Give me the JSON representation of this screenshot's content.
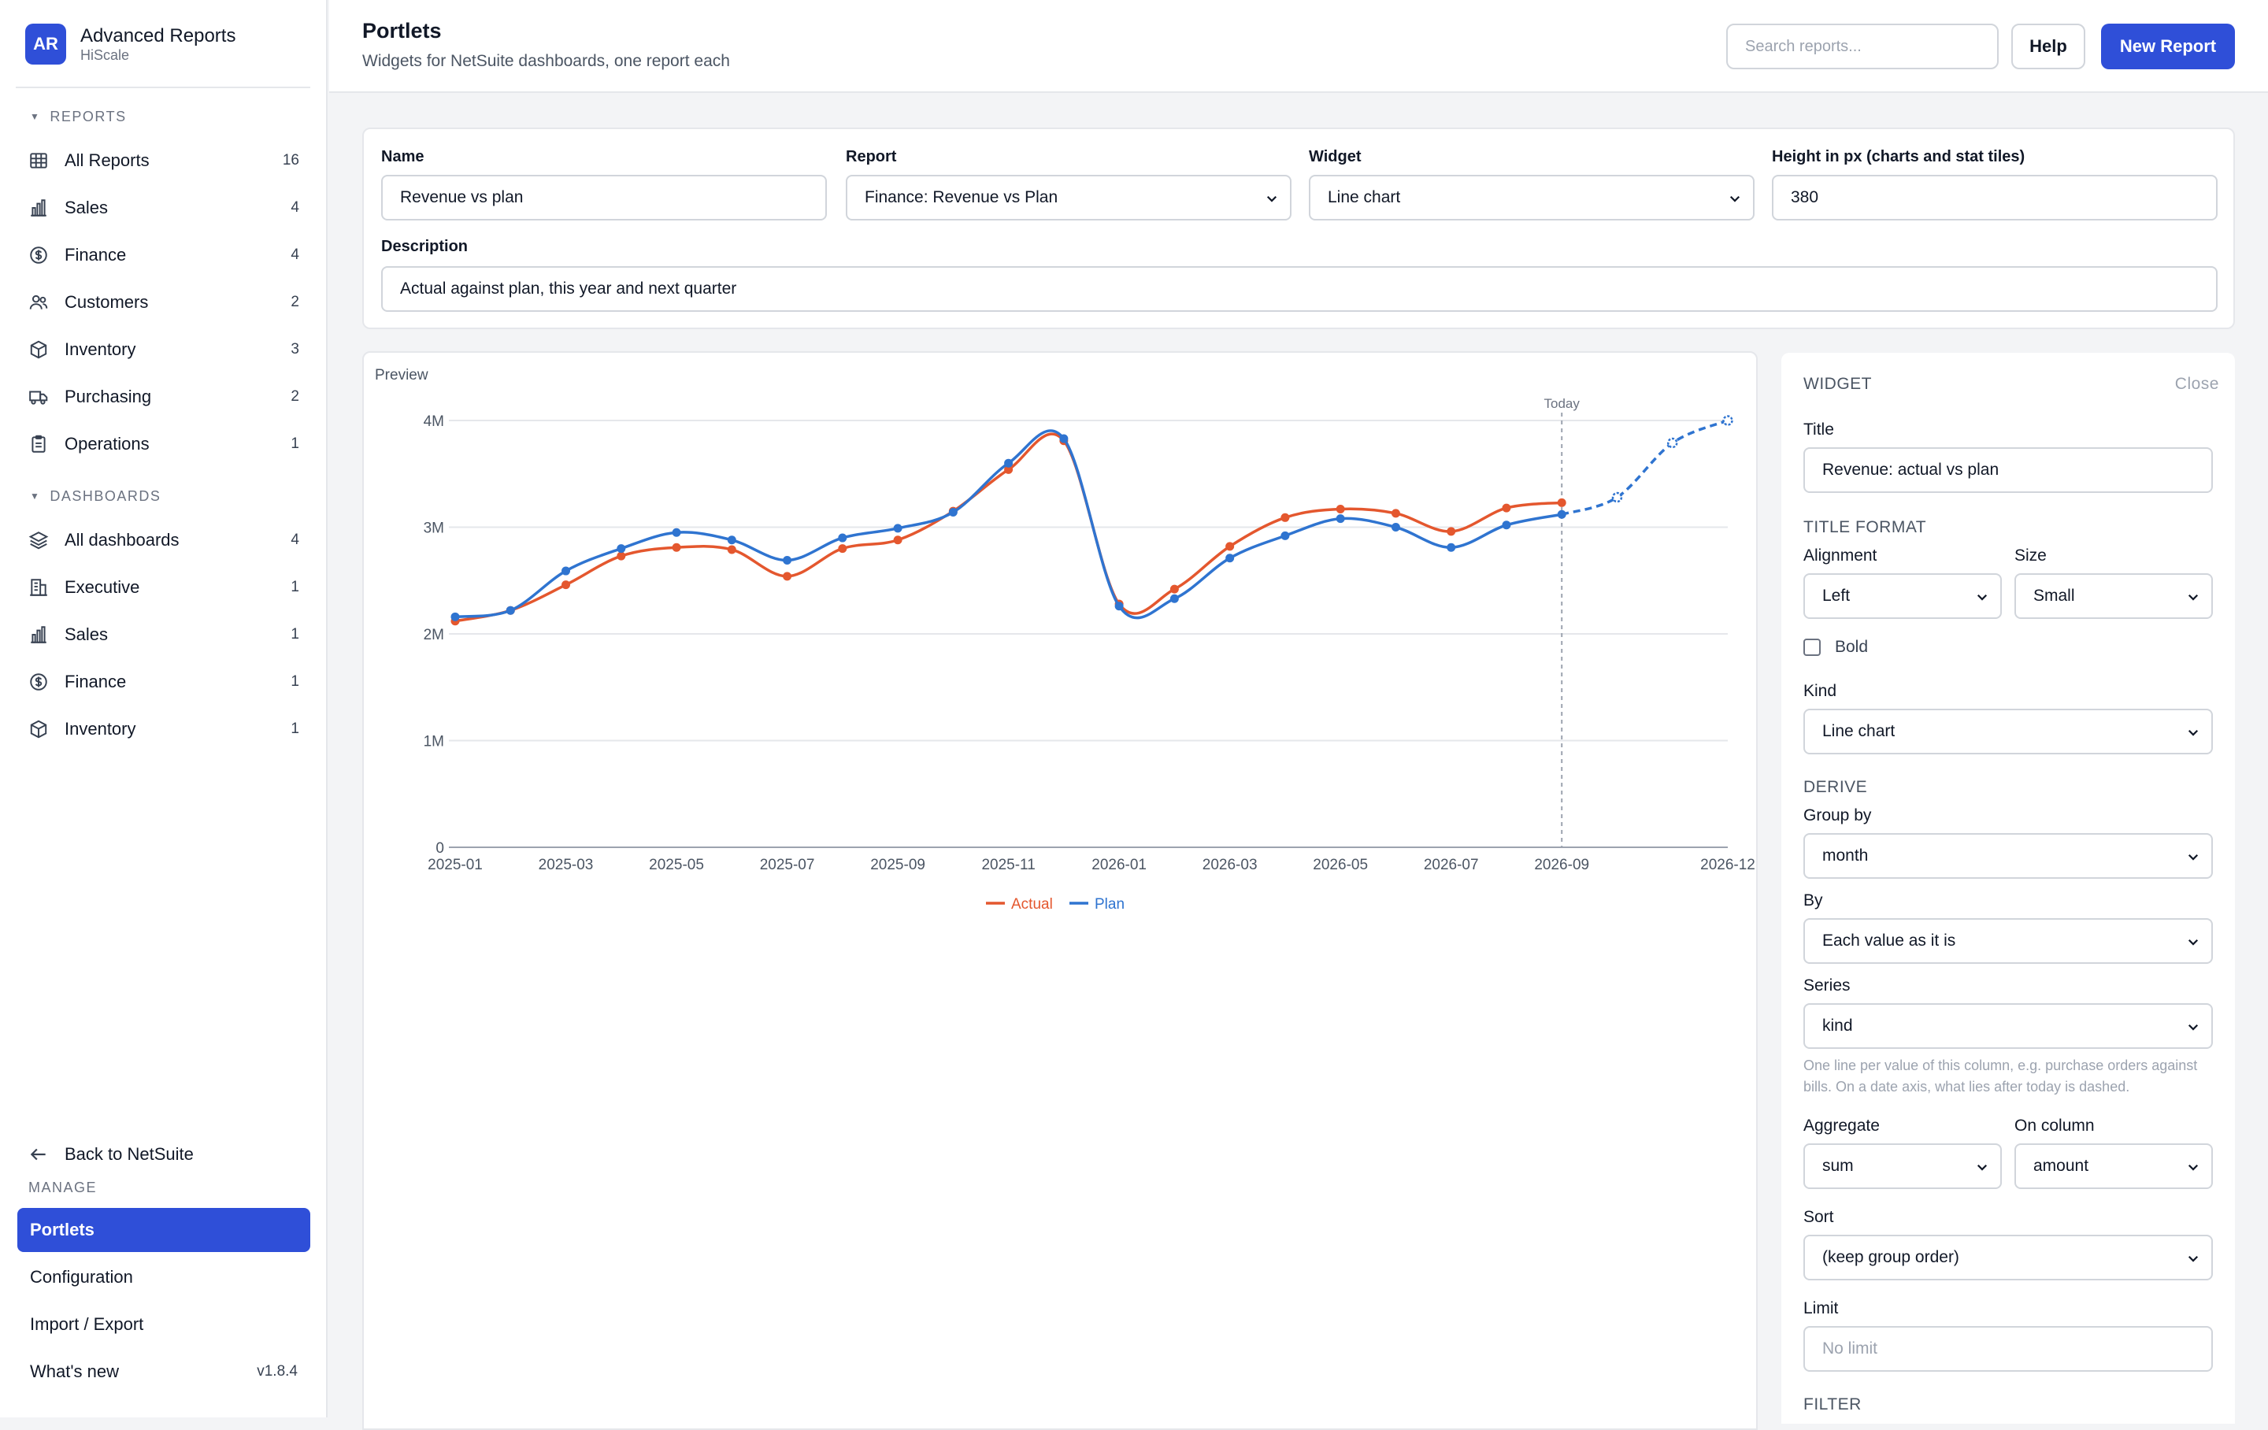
{
  "sidebar": {
    "logo": "AR",
    "app_name": "Advanced Reports",
    "org": "HiScale",
    "reports_section": "REPORTS",
    "reports": [
      {
        "label": "All Reports",
        "count": "16",
        "icon": "grid-icon"
      },
      {
        "label": "Sales",
        "count": "4",
        "icon": "bar-chart-icon"
      },
      {
        "label": "Finance",
        "count": "4",
        "icon": "dollar-icon"
      },
      {
        "label": "Customers",
        "count": "2",
        "icon": "users-icon"
      },
      {
        "label": "Inventory",
        "count": "3",
        "icon": "box-icon"
      },
      {
        "label": "Purchasing",
        "count": "2",
        "icon": "truck-icon"
      },
      {
        "label": "Operations",
        "count": "1",
        "icon": "clipboard-icon"
      }
    ],
    "dashboards_section": "DASHBOARDS",
    "dashboards": [
      {
        "label": "All dashboards",
        "count": "4",
        "icon": "layers-icon"
      },
      {
        "label": "Executive",
        "count": "1",
        "icon": "building-icon"
      },
      {
        "label": "Sales",
        "count": "1",
        "icon": "bar-chart-icon"
      },
      {
        "label": "Finance",
        "count": "1",
        "icon": "dollar-icon"
      },
      {
        "label": "Inventory",
        "count": "1",
        "icon": "box-icon"
      }
    ],
    "back": "Back to NetSuite",
    "manage_section": "MANAGE",
    "manage": [
      {
        "label": "Portlets",
        "active": true
      },
      {
        "label": "Configuration"
      },
      {
        "label": "Import / Export"
      },
      {
        "label": "What's new",
        "version": "v1.8.4"
      }
    ]
  },
  "header": {
    "title": "Portlets",
    "subtitle": "Widgets for NetSuite dashboards, one report each",
    "search_placeholder": "Search reports...",
    "help": "Help",
    "new_report": "New Report"
  },
  "form": {
    "name_label": "Name",
    "name_value": "Revenue vs plan",
    "report_label": "Report",
    "report_value": "Finance: Revenue vs Plan",
    "widget_label": "Widget",
    "widget_value": "Line chart",
    "height_label": "Height in px (charts and stat tiles)",
    "height_value": "380",
    "desc_label": "Description",
    "desc_value": "Actual against plan, this year and next quarter"
  },
  "preview": {
    "label": "Preview"
  },
  "chart_data": {
    "type": "line",
    "x": [
      "2025-01",
      "2025-02",
      "2025-03",
      "2025-04",
      "2025-05",
      "2025-06",
      "2025-07",
      "2025-08",
      "2025-09",
      "2025-10",
      "2025-11",
      "2025-12",
      "2026-01",
      "2026-02",
      "2026-03",
      "2026-04",
      "2026-05",
      "2026-06",
      "2026-07",
      "2026-08",
      "2026-09",
      "2026-10",
      "2026-11",
      "2026-12"
    ],
    "x_ticks": [
      "2025-01",
      "2025-03",
      "2025-05",
      "2025-07",
      "2025-09",
      "2025-11",
      "2026-01",
      "2026-03",
      "2026-05",
      "2026-07",
      "2026-09",
      "2026-12"
    ],
    "y_ticks": [
      "0",
      "1M",
      "2M",
      "3M",
      "4M"
    ],
    "ylim": [
      0,
      4000000
    ],
    "today": "2026-09",
    "today_label": "Today",
    "series": [
      {
        "name": "Actual",
        "color": "#e4572e",
        "values": [
          2120000,
          2220000,
          2460000,
          2730000,
          2810000,
          2790000,
          2540000,
          2800000,
          2880000,
          3150000,
          3540000,
          3810000,
          2280000,
          2420000,
          2820000,
          3090000,
          3170000,
          3130000,
          2960000,
          3180000,
          3230000,
          null,
          null,
          null
        ]
      },
      {
        "name": "Plan",
        "color": "#2f74d0",
        "values": [
          2160000,
          2220000,
          2590000,
          2800000,
          2950000,
          2880000,
          2690000,
          2900000,
          2990000,
          3140000,
          3600000,
          3830000,
          2260000,
          2330000,
          2710000,
          2920000,
          3080000,
          3000000,
          2810000,
          3020000,
          3120000,
          3280000,
          3790000,
          4000000
        ]
      }
    ]
  },
  "panel": {
    "heading": "WIDGET",
    "close": "Close",
    "title_label": "Title",
    "title_value": "Revenue: actual vs plan",
    "title_format": "TITLE FORMAT",
    "alignment_label": "Alignment",
    "alignment_value": "Left",
    "size_label": "Size",
    "size_value": "Small",
    "bold_label": "Bold",
    "kind_label": "Kind",
    "kind_value": "Line chart",
    "derive": "DERIVE",
    "group_by_label": "Group by",
    "group_by_value": "month",
    "by_label": "By",
    "by_value": "Each value as it is",
    "series_label": "Series",
    "series_value": "kind",
    "series_help": "One line per value of this column, e.g. purchase orders against bills. On a date axis, what lies after today is dashed.",
    "aggregate_label": "Aggregate",
    "aggregate_value": "sum",
    "on_column_label": "On column",
    "on_column_value": "amount",
    "sort_label": "Sort",
    "sort_value": "(keep group order)",
    "limit_label": "Limit",
    "limit_placeholder": "No limit",
    "filter": "FILTER"
  }
}
